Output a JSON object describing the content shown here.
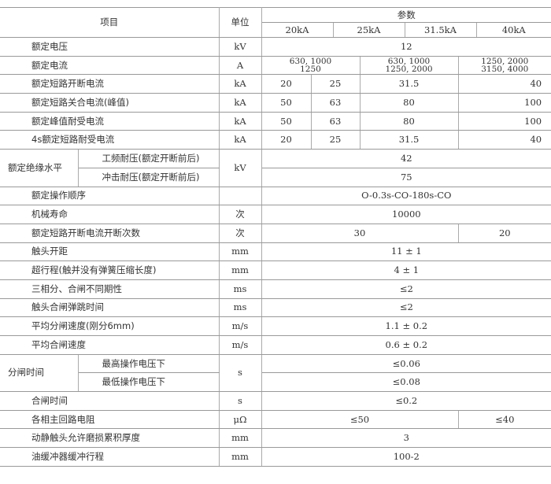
{
  "header": {
    "item": "项目",
    "unit": "单位",
    "params": "参数",
    "ratings": [
      "20kA",
      "25kA",
      "31.5kA",
      "40kA"
    ]
  },
  "rows": [
    {
      "item": "额定电压",
      "unit": "kV",
      "values": [
        "12"
      ]
    },
    {
      "item": "额定电流",
      "unit": "A",
      "values": [
        "630, 1000\n1250",
        "630, 1000\n1250, 2000",
        "1250, 2000\n3150, 4000"
      ]
    },
    {
      "item": "额定短路开断电流",
      "unit": "kA",
      "values": [
        "20",
        "25",
        "31.5",
        "40"
      ]
    },
    {
      "item": "额定短路关合电流(峰值)",
      "unit": "kA",
      "values": [
        "50",
        "63",
        "80",
        "100"
      ]
    },
    {
      "item": "额定峰值耐受电流",
      "unit": "kA",
      "values": [
        "50",
        "63",
        "80",
        "100"
      ]
    },
    {
      "item": "4s额定短路耐受电流",
      "unit": "kA",
      "values": [
        "20",
        "25",
        "31.5",
        "40"
      ]
    },
    {
      "group": "额定绝缘水平",
      "unit": "kV",
      "subs": [
        {
          "item": "工频耐压(额定开断前后)",
          "values": [
            "42"
          ]
        },
        {
          "item": "冲击耐压(额定开断前后)",
          "values": [
            "75"
          ]
        }
      ]
    },
    {
      "item": "额定操作顺序",
      "unit": "",
      "values": [
        "O-0.3s-CO-180s-CO"
      ]
    },
    {
      "item": "机械寿命",
      "unit": "次",
      "values": [
        "10000"
      ]
    },
    {
      "item": "额定短路开断电流开断次数",
      "unit": "次",
      "values": [
        "30",
        "20"
      ]
    },
    {
      "item": "触头开距",
      "unit": "mm",
      "values": [
        "11 ± 1"
      ]
    },
    {
      "item": "超行程(触并没有弹簧压缩长度)",
      "unit": "mm",
      "values": [
        "4 ± 1"
      ]
    },
    {
      "item": "三相分、合闸不同期性",
      "unit": "ms",
      "values": [
        "≤2"
      ]
    },
    {
      "item": "触头合闸弹跳时间",
      "unit": "ms",
      "values": [
        "≤2"
      ]
    },
    {
      "item": "平均分闸速度(刚分6mm)",
      "unit": "m/s",
      "values": [
        "1.1 ± 0.2"
      ]
    },
    {
      "item": "平均合闸速度",
      "unit": "m/s",
      "values": [
        "0.6 ± 0.2"
      ]
    },
    {
      "group": "分闸时间",
      "unit": "s",
      "subs": [
        {
          "item": "最高操作电压下",
          "values": [
            "≤0.06"
          ]
        },
        {
          "item": "最低操作电压下",
          "values": [
            "≤0.08"
          ]
        }
      ]
    },
    {
      "item": "合闸时间",
      "unit": "s",
      "values": [
        "≤0.2"
      ]
    },
    {
      "item": "各相主回路电阻",
      "unit": "μΩ",
      "values": [
        "≤50",
        "≤40"
      ]
    },
    {
      "item": "动静触头允许磨损累积厚度",
      "unit": "mm",
      "values": [
        "3"
      ]
    },
    {
      "item": "油缓冲器缓冲行程",
      "unit": "mm",
      "values": [
        "100-2"
      ]
    }
  ]
}
